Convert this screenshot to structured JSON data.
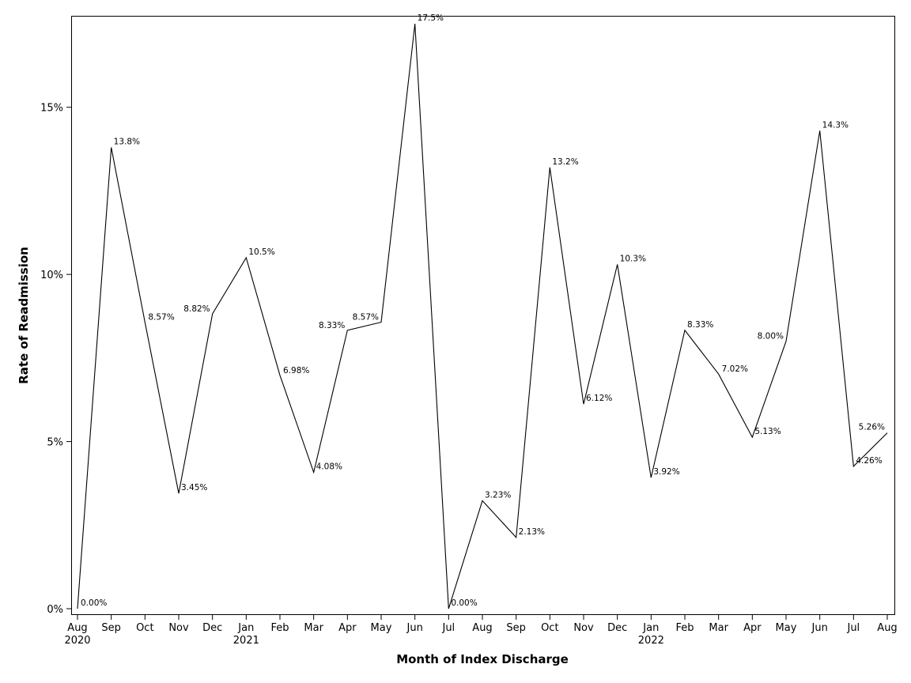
{
  "chart_data": {
    "type": "line",
    "title": "",
    "xlabel": "Month of Index Discharge",
    "ylabel": "Rate of Readmission",
    "ylim": [
      0,
      17.5
    ],
    "grid": false,
    "y_ticks": [
      {
        "value": 0,
        "label": "0%"
      },
      {
        "value": 5,
        "label": "5%"
      },
      {
        "value": 10,
        "label": "10%"
      },
      {
        "value": 15,
        "label": "15%"
      }
    ],
    "categories": [
      "Aug",
      "Sep",
      "Oct",
      "Nov",
      "Dec",
      "Jan",
      "Feb",
      "Mar",
      "Apr",
      "May",
      "Jun",
      "Jul",
      "Aug",
      "Sep",
      "Oct",
      "Nov",
      "Dec",
      "Jan",
      "Feb",
      "Mar",
      "Apr",
      "May",
      "Jun",
      "Jul",
      "Aug"
    ],
    "year_labels": [
      {
        "index": 0,
        "label": "2020"
      },
      {
        "index": 5,
        "label": "2021"
      },
      {
        "index": 17,
        "label": "2022"
      }
    ],
    "series": [
      {
        "name": "Rate of Readmission",
        "values": [
          0.0,
          13.8,
          8.57,
          3.45,
          8.82,
          10.5,
          6.98,
          4.08,
          8.33,
          8.57,
          17.5,
          0.0,
          3.23,
          2.13,
          13.2,
          6.12,
          10.3,
          3.92,
          8.33,
          7.02,
          5.13,
          8.0,
          14.3,
          4.26,
          5.26
        ],
        "labels": [
          "0.00%",
          "13.8%",
          "8.57%",
          "3.45%",
          "8.82%",
          "10.5%",
          "6.98%",
          "4.08%",
          "8.33%",
          "8.57%",
          "17.5%",
          "0.00%",
          "3.23%",
          "2.13%",
          "13.2%",
          "6.12%",
          "10.3%",
          "3.92%",
          "8.33%",
          "7.02%",
          "5.13%",
          "8.00%",
          "14.3%",
          "4.26%",
          "5.26%"
        ]
      }
    ]
  }
}
